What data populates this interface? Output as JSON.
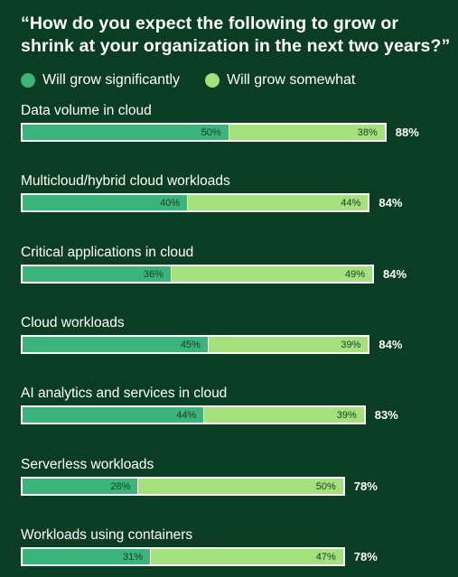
{
  "title": "“How do you expect the following to grow or shrink at your organization in the next two years?”",
  "chart_data": {
    "type": "bar",
    "stacked": true,
    "orientation": "horizontal",
    "categories": [
      "Data volume in cloud",
      "Multicloud/hybrid cloud workloads",
      "Critical applications in cloud",
      "Cloud workloads",
      "AI analytics and services in cloud",
      "Serverless workloads",
      "Workloads using containers"
    ],
    "series": [
      {
        "name": "Will grow significantly",
        "color": "#3bb37a",
        "values": [
          50,
          40,
          36,
          45,
          44,
          28,
          31
        ]
      },
      {
        "name": "Will grow somewhat",
        "color": "#a4e07c",
        "values": [
          38,
          44,
          49,
          39,
          39,
          50,
          47
        ]
      }
    ],
    "totals": [
      88,
      84,
      84,
      84,
      83,
      78,
      78
    ],
    "value_suffix": "%",
    "legend_position": "top-left",
    "grid": false
  }
}
